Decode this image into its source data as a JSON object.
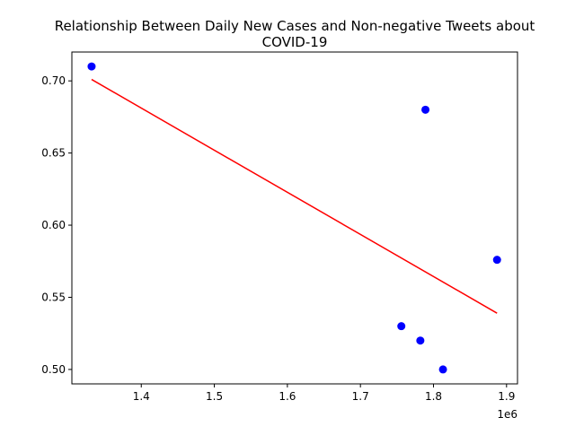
{
  "chart_data": {
    "type": "scatter",
    "title_lines": [
      "Relationship Between Daily New Cases and Non-negative Tweets about",
      "COVID-19"
    ],
    "xlabel": "",
    "ylabel": "",
    "x_offset_label": "1e6",
    "xlim": [
      1.305,
      1.915
    ],
    "ylim": [
      0.49,
      0.72
    ],
    "x_ticks": [
      1.4,
      1.5,
      1.6,
      1.7,
      1.8,
      1.9
    ],
    "x_tick_labels": [
      "1.4",
      "1.5",
      "1.6",
      "1.7",
      "1.8",
      "1.9"
    ],
    "y_ticks": [
      0.5,
      0.55,
      0.6,
      0.65,
      0.7
    ],
    "y_tick_labels": [
      "0.50",
      "0.55",
      "0.60",
      "0.65",
      "0.70"
    ],
    "grid": false,
    "legend": "none",
    "series": [
      {
        "type": "scatter",
        "color": "#0000ff",
        "points": [
          {
            "x": 1.332,
            "y": 0.71
          },
          {
            "x": 1.789,
            "y": 0.68
          },
          {
            "x": 1.887,
            "y": 0.576
          },
          {
            "x": 1.756,
            "y": 0.53
          },
          {
            "x": 1.782,
            "y": 0.52
          },
          {
            "x": 1.813,
            "y": 0.5
          }
        ]
      },
      {
        "type": "line",
        "color": "#ff0000",
        "points": [
          {
            "x": 1.332,
            "y": 0.701
          },
          {
            "x": 1.887,
            "y": 0.539
          }
        ]
      }
    ]
  }
}
